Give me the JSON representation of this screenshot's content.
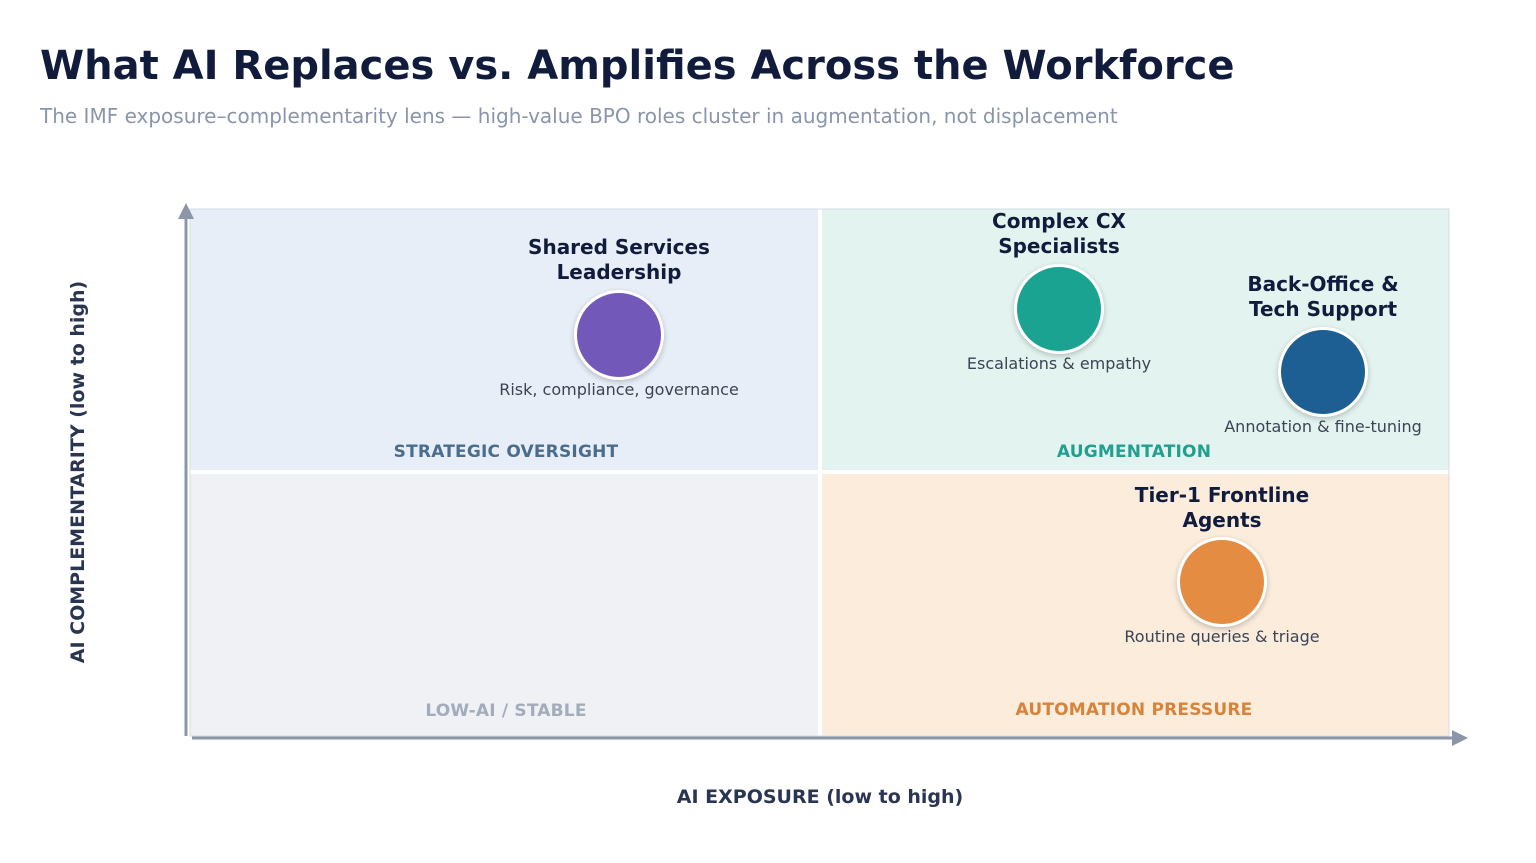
{
  "header": {
    "title": "What AI Replaces vs. Amplifies Across the Workforce",
    "subtitle": "The IMF exposure–complementarity lens — high-value BPO roles cluster in augmentation, not displacement"
  },
  "axes": {
    "x_label": "AI EXPOSURE  (low to high)",
    "y_label": "AI COMPLEMENTARITY  (low to high)"
  },
  "quadrants": [
    {
      "label": "STRATEGIC OVERSIGHT",
      "position": "top-left",
      "bg_color": "#e7eef7",
      "label_color": "#4a6d8c"
    },
    {
      "label": "AUGMENTATION",
      "position": "top-right",
      "bg_color": "#e3f3f0",
      "label_color": "#21a08f"
    },
    {
      "label": "LOW-AI / STABLE",
      "position": "bottom-left",
      "bg_color": "#eff1f5",
      "label_color": "#a3acba"
    },
    {
      "label": "AUTOMATION PRESSURE",
      "position": "bottom-right",
      "bg_color": "#fbecdc",
      "label_color": "#d6843b"
    }
  ],
  "roles": [
    {
      "title_lines": [
        "Shared Services",
        "Leadership"
      ],
      "note": "Risk, compliance, governance",
      "color": "#7258b9"
    },
    {
      "title_lines": [
        "Complex CX",
        "Specialists"
      ],
      "note": "Escalations & empathy",
      "color": "#1aa391"
    },
    {
      "title_lines": [
        "Back-Office &",
        "Tech Support"
      ],
      "note": "Annotation & fine-tuning",
      "color": "#1d5f92"
    },
    {
      "title_lines": [
        "Tier-1 Frontline",
        "Agents"
      ],
      "note": "Routine queries & triage",
      "color": "#e38c42"
    }
  ],
  "colors": {
    "title": "#111c3c",
    "subtitle": "#8a95ab",
    "axis": "#8b97a8",
    "axis_label": "#2a3552"
  }
}
